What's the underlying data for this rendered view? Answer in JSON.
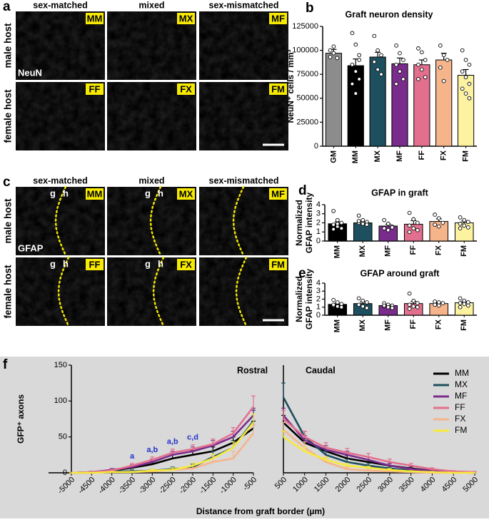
{
  "image_panels": [
    {
      "letter": "a",
      "columns": [
        "sex-matched",
        "mixed",
        "sex-mismatched"
      ],
      "rows": [
        "male host",
        "female host"
      ],
      "tags": [
        [
          "MM",
          "MX",
          "MF"
        ],
        [
          "FF",
          "FX",
          "FM"
        ]
      ],
      "stain": "NeuN"
    },
    {
      "letter": "c",
      "columns": [
        "sex-matched",
        "mixed",
        "sex-mismatched"
      ],
      "rows": [
        "male host",
        "female host"
      ],
      "tags": [
        [
          "MM",
          "MX",
          "MF"
        ],
        [
          "FF",
          "FX",
          "FM"
        ]
      ],
      "stain": "GFAP",
      "border_labels": [
        "g",
        "h"
      ]
    }
  ],
  "chart_data": [
    {
      "type": "bar",
      "panel_label": "b",
      "title": "Graft neuron density",
      "y_label": "NeuN⁺ cells / mm³",
      "categories": [
        "GM",
        "MM",
        "MX",
        "MF",
        "FF",
        "FX",
        "FM"
      ],
      "colors": [
        "#8c8c8c",
        "#000000",
        "#1e4f5f",
        "#7a2c8c",
        "#e36f8e",
        "#f6b48b",
        "#fdf2a0"
      ],
      "values": [
        97000,
        84000,
        93000,
        86000,
        85000,
        90000,
        74000
      ],
      "errors": [
        4000,
        7000,
        5000,
        6000,
        5000,
        7000,
        6000
      ],
      "points": [
        [
          100000,
          97000,
          92000,
          93000,
          104000
        ],
        [
          118000,
          106000,
          90000,
          85000,
          78000,
          70000,
          65000,
          55000,
          95000
        ],
        [
          115000,
          100000,
          95000,
          88000,
          80000,
          75000
        ],
        [
          105000,
          97000,
          90000,
          85000,
          78000,
          70000,
          65000
        ],
        [
          102000,
          98000,
          90000,
          85000,
          80000,
          72000,
          70000
        ],
        [
          105000,
          95000,
          90000,
          82000,
          68000
        ],
        [
          100000,
          90000,
          85000,
          78000,
          72000,
          65000,
          60000,
          55000,
          50000
        ]
      ],
      "ylim": [
        0,
        125000
      ],
      "yticks": [
        0,
        25000,
        50000,
        75000,
        100000,
        125000
      ]
    },
    {
      "type": "bar",
      "panel_label": "d",
      "title": "GFAP in graft",
      "y_label": [
        "Normalized",
        "GFAP intensity"
      ],
      "categories": [
        "MM",
        "MX",
        "MF",
        "FF",
        "FX",
        "FM"
      ],
      "colors": [
        "#000000",
        "#1e4f5f",
        "#7a2c8c",
        "#e36f8e",
        "#f6b48b",
        "#fdf2a0"
      ],
      "values": [
        1.9,
        2.0,
        1.65,
        1.85,
        2.15,
        2.0
      ],
      "errors": [
        0.2,
        0.15,
        0.2,
        0.4,
        0.3,
        0.2
      ],
      "points": [
        [
          3.3,
          2.3,
          2.0,
          1.8,
          1.6,
          1.4,
          1.3,
          1.9
        ],
        [
          2.8,
          2.3,
          2.1,
          2.0,
          1.9,
          1.8,
          2.2
        ],
        [
          2.3,
          1.9,
          1.6,
          1.4,
          1.2,
          1.5
        ],
        [
          3.1,
          2.4,
          2.0,
          1.7,
          1.4,
          1.2,
          1.0
        ],
        [
          2.9,
          2.5,
          2.0,
          1.8,
          1.6
        ],
        [
          2.6,
          2.3,
          2.1,
          1.9,
          1.7,
          1.5,
          1.4
        ]
      ],
      "ylim": [
        0,
        4
      ],
      "yticks": [
        0,
        1,
        2,
        3,
        4
      ]
    },
    {
      "type": "bar",
      "panel_label": "e",
      "title": "GFAP around graft",
      "y_label": [
        "Normalized",
        "GFAP intensity"
      ],
      "categories": [
        "MM",
        "MX",
        "MF",
        "FF",
        "FX",
        "FM"
      ],
      "colors": [
        "#000000",
        "#1e4f5f",
        "#7a2c8c",
        "#e36f8e",
        "#f6b48b",
        "#fdf2a0"
      ],
      "values": [
        1.35,
        1.45,
        1.2,
        1.45,
        1.45,
        1.55
      ],
      "errors": [
        0.15,
        0.2,
        0.12,
        0.25,
        0.1,
        0.15
      ],
      "points": [
        [
          1.9,
          1.6,
          1.4,
          1.2,
          1.1,
          1.0,
          1.3
        ],
        [
          2.1,
          1.8,
          1.6,
          1.3,
          1.1,
          0.9
        ],
        [
          1.5,
          1.3,
          1.2,
          1.1,
          1.0,
          0.9,
          1.2
        ],
        [
          2.7,
          1.8,
          1.5,
          1.3,
          1.1,
          1.0,
          0.8
        ],
        [
          1.7,
          1.6,
          1.5,
          1.3,
          1.2
        ],
        [
          2.1,
          1.8,
          1.6,
          1.5,
          1.4,
          1.2,
          1.0
        ]
      ],
      "ylim": [
        0,
        4
      ],
      "yticks": [
        0,
        1,
        2,
        3,
        4
      ]
    },
    {
      "type": "line",
      "panel_label": "f",
      "title": "Rostral",
      "y_label": "GFP⁺ axons",
      "x": [
        -5000,
        -4500,
        -4000,
        -3500,
        -3000,
        -2500,
        -2000,
        -1500,
        -1000,
        -500
      ],
      "series": [
        {
          "name": "MM",
          "color": "#000000",
          "values": [
            0,
            1,
            3,
            7,
            12,
            20,
            25,
            30,
            42,
            62
          ],
          "errors": [
            0,
            1,
            2,
            3,
            4,
            5,
            6,
            6,
            8,
            10
          ]
        },
        {
          "name": "MX",
          "color": "#1e4f5f",
          "values": [
            0,
            0,
            2,
            2,
            3,
            5,
            8,
            22,
            35,
            72
          ],
          "errors": [
            0,
            0,
            1,
            2,
            2,
            3,
            4,
            8,
            10,
            15
          ]
        },
        {
          "name": "MF",
          "color": "#7a2c8c",
          "values": [
            0,
            1,
            4,
            8,
            15,
            25,
            30,
            38,
            50,
            80
          ],
          "errors": [
            0,
            1,
            2,
            3,
            4,
            5,
            6,
            7,
            8,
            10
          ]
        },
        {
          "name": "FF",
          "color": "#e36f8e",
          "values": [
            0,
            1,
            3,
            10,
            18,
            28,
            33,
            40,
            55,
            92
          ],
          "errors": [
            0,
            1,
            2,
            3,
            4,
            5,
            6,
            7,
            8,
            15
          ]
        },
        {
          "name": "FX",
          "color": "#f6b48b",
          "values": [
            0,
            0,
            1,
            1,
            2,
            4,
            6,
            15,
            20,
            55
          ],
          "errors": [
            0,
            0,
            1,
            1,
            2,
            3,
            4,
            8,
            10,
            12
          ]
        },
        {
          "name": "FM",
          "color": "#f7ea3a",
          "values": [
            0,
            0,
            1,
            1,
            3,
            4,
            10,
            20,
            35,
            70
          ],
          "errors": [
            0,
            0,
            1,
            1,
            2,
            3,
            4,
            6,
            8,
            12
          ]
        }
      ],
      "annotations": [
        {
          "x": -3500,
          "text": "a"
        },
        {
          "x": -3000,
          "text": "a,b"
        },
        {
          "x": -2500,
          "text": "a,b"
        },
        {
          "x": -2000,
          "text": "c,d"
        }
      ],
      "annotation_color": "#2233cc",
      "xlim": [
        -5000,
        -500
      ],
      "xticks": [
        -5000,
        -4500,
        -4000,
        -3500,
        -3000,
        -2500,
        -2000,
        -1500,
        -1000,
        -500
      ],
      "ylim": [
        0,
        150
      ],
      "yticks": [
        0,
        50,
        100,
        150
      ]
    },
    {
      "type": "line",
      "title": "Caudal",
      "x_label": "Distance from graft border (µm)",
      "legend": "top-right",
      "x": [
        500,
        1000,
        1500,
        2000,
        2500,
        3000,
        3500,
        4000,
        4500,
        5000
      ],
      "series": [
        {
          "name": "MM",
          "color": "#000000",
          "values": [
            70,
            42,
            30,
            20,
            15,
            10,
            6,
            3,
            1,
            0
          ],
          "errors": [
            10,
            6,
            5,
            4,
            3,
            3,
            2,
            1,
            1,
            0
          ]
        },
        {
          "name": "MX",
          "color": "#1e4f5f",
          "values": [
            105,
            50,
            25,
            15,
            10,
            6,
            3,
            2,
            1,
            0
          ],
          "errors": [
            20,
            8,
            5,
            4,
            3,
            2,
            1,
            1,
            1,
            0
          ]
        },
        {
          "name": "MF",
          "color": "#7a2c8c",
          "values": [
            80,
            45,
            32,
            25,
            18,
            10,
            5,
            3,
            1,
            0
          ],
          "errors": [
            10,
            7,
            6,
            5,
            4,
            3,
            2,
            1,
            1,
            0
          ]
        },
        {
          "name": "FF",
          "color": "#e36f8e",
          "values": [
            75,
            50,
            35,
            28,
            22,
            15,
            10,
            5,
            2,
            1
          ],
          "errors": [
            12,
            8,
            7,
            6,
            5,
            4,
            3,
            2,
            1,
            1
          ]
        },
        {
          "name": "FX",
          "color": "#f6b48b",
          "values": [
            60,
            35,
            15,
            5,
            3,
            2,
            1,
            0,
            0,
            0
          ],
          "errors": [
            10,
            8,
            6,
            3,
            2,
            1,
            1,
            0,
            0,
            0
          ]
        },
        {
          "name": "FM",
          "color": "#f7ea3a",
          "values": [
            50,
            30,
            18,
            10,
            7,
            4,
            2,
            1,
            0,
            0
          ],
          "errors": [
            8,
            6,
            4,
            3,
            2,
            2,
            1,
            1,
            0,
            0
          ]
        }
      ],
      "xlim": [
        500,
        5000
      ],
      "xticks": [
        500,
        1000,
        1500,
        2000,
        2500,
        3000,
        3500,
        4000,
        4500,
        5000
      ],
      "ylim": [
        0,
        150
      ]
    }
  ]
}
